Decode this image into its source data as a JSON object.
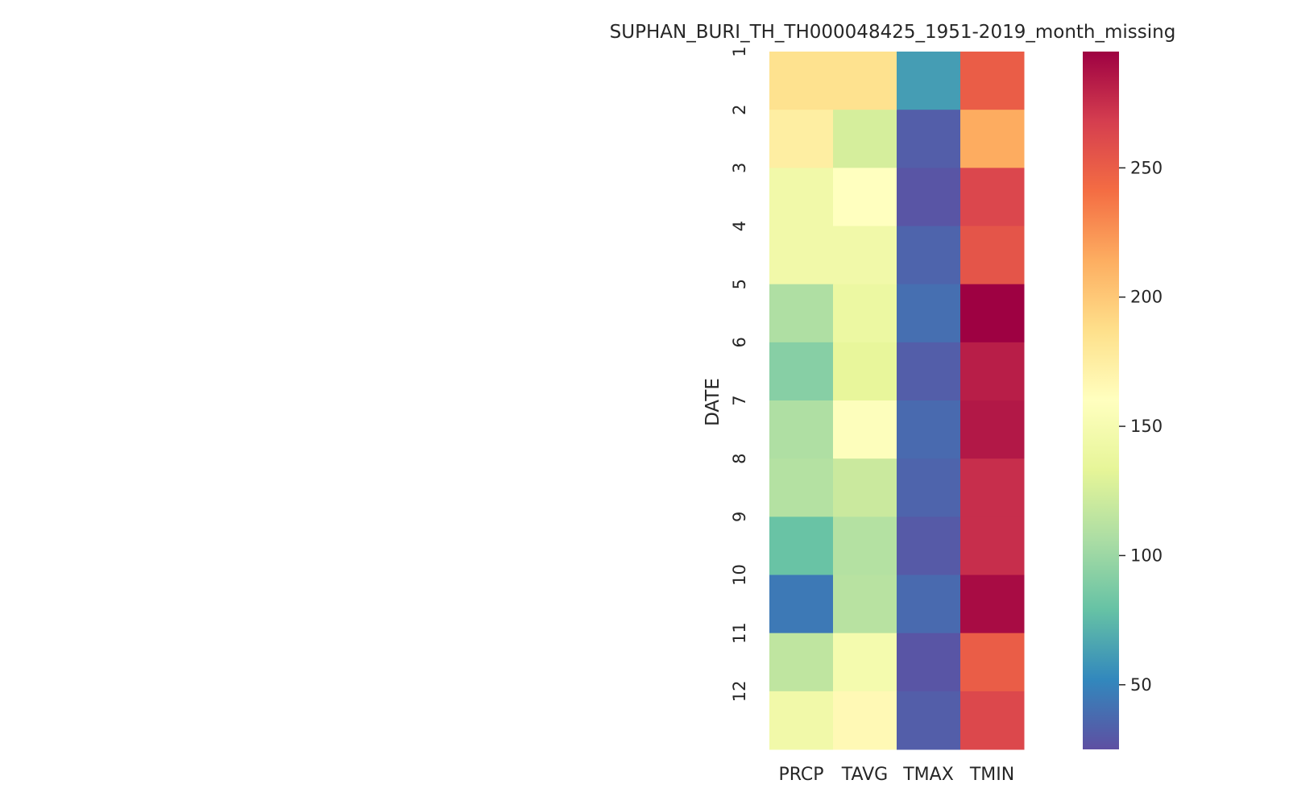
{
  "chart_data": {
    "type": "heatmap",
    "title": "SUPHAN_BURI_TH_TH000048425_1951-2019_month_missing",
    "xlabel": "",
    "ylabel": "DATE",
    "columns": [
      "PRCP",
      "TAVG",
      "TMAX",
      "TMIN"
    ],
    "rows": [
      "1",
      "2",
      "3",
      "4",
      "5",
      "6",
      "7",
      "8",
      "9",
      "10",
      "11",
      "12"
    ],
    "values": [
      [
        185,
        185,
        62,
        250
      ],
      [
        175,
        125,
        32,
        215
      ],
      [
        145,
        160,
        28,
        263
      ],
      [
        145,
        145,
        35,
        255
      ],
      [
        108,
        140,
        40,
        295
      ],
      [
        92,
        135,
        32,
        282
      ],
      [
        108,
        158,
        38,
        285
      ],
      [
        110,
        120,
        35,
        275
      ],
      [
        80,
        110,
        30,
        275
      ],
      [
        45,
        112,
        38,
        290
      ],
      [
        115,
        148,
        28,
        250
      ],
      [
        145,
        165,
        32,
        262
      ]
    ],
    "colorbar": {
      "min": 25,
      "max": 295,
      "ticks": [
        50,
        100,
        150,
        200,
        250
      ],
      "colormap": "Spectral_r"
    },
    "grid": false,
    "legend": "colorbar-right"
  }
}
